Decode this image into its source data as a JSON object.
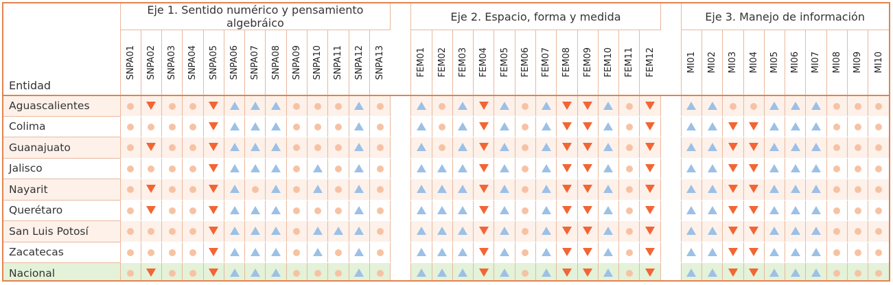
{
  "header": {
    "entity_label": "Entidad",
    "axes": [
      {
        "title": "Eje 1. Sentido numérico y pensamiento algebráico",
        "codes": [
          "SNPA01",
          "SNPA02",
          "SNPA03",
          "SNPA04",
          "SNPA05",
          "SNPA06",
          "SNPA07",
          "SNPA08",
          "SNPA09",
          "SNPA10",
          "SNPA11",
          "SNPA12",
          "SNPA13"
        ]
      },
      {
        "title": "Eje 2. Espacio, forma y medida",
        "codes": [
          "FEM01",
          "FEM02",
          "FEM03",
          "FEM04",
          "FEM05",
          "FEM06",
          "FEM07",
          "FEM08",
          "FEM09",
          "FEM10",
          "FEM11",
          "FEM12"
        ]
      },
      {
        "title": "Eje 3. Manejo de información",
        "codes": [
          "MI01",
          "MI02",
          "MI03",
          "MI04",
          "MI05",
          "MI06",
          "MI07",
          "MI08",
          "MI09",
          "MI10"
        ]
      }
    ]
  },
  "legend_symbols": {
    "o": "dot",
    "u": "triangle-up",
    "d": "triangle-down"
  },
  "colors": {
    "dot": "#f7c2a3",
    "up": "#9cc0e6",
    "down": "#f26534",
    "border": "#e1834e",
    "row_alt": "#fdf1ea",
    "national": "#e3f2d8"
  },
  "rows": [
    {
      "entity": "Aguascalientes",
      "values": [
        "o",
        "d",
        "o",
        "o",
        "d",
        "u",
        "u",
        "u",
        "o",
        "o",
        "o",
        "u",
        "o",
        "u",
        "o",
        "u",
        "d",
        "u",
        "o",
        "u",
        "d",
        "d",
        "u",
        "o",
        "d",
        "u",
        "u",
        "o",
        "o",
        "u",
        "u",
        "u",
        "o",
        "o",
        "o"
      ]
    },
    {
      "entity": "Colima",
      "values": [
        "o",
        "o",
        "o",
        "o",
        "d",
        "u",
        "u",
        "u",
        "o",
        "o",
        "o",
        "u",
        "o",
        "u",
        "o",
        "u",
        "d",
        "u",
        "o",
        "u",
        "d",
        "d",
        "u",
        "o",
        "d",
        "u",
        "u",
        "d",
        "d",
        "u",
        "u",
        "u",
        "o",
        "o",
        "o"
      ]
    },
    {
      "entity": "Guanajuato",
      "values": [
        "o",
        "d",
        "o",
        "o",
        "d",
        "u",
        "u",
        "u",
        "o",
        "o",
        "o",
        "u",
        "o",
        "u",
        "o",
        "u",
        "d",
        "u",
        "o",
        "u",
        "d",
        "d",
        "u",
        "o",
        "d",
        "u",
        "u",
        "d",
        "d",
        "u",
        "u",
        "u",
        "o",
        "o",
        "o"
      ]
    },
    {
      "entity": "Jalisco",
      "values": [
        "o",
        "o",
        "o",
        "o",
        "d",
        "u",
        "u",
        "u",
        "o",
        "u",
        "o",
        "u",
        "o",
        "u",
        "u",
        "u",
        "d",
        "u",
        "o",
        "u",
        "d",
        "d",
        "u",
        "o",
        "d",
        "u",
        "u",
        "d",
        "d",
        "u",
        "u",
        "u",
        "o",
        "o",
        "o"
      ]
    },
    {
      "entity": "Nayarit",
      "values": [
        "o",
        "d",
        "o",
        "o",
        "d",
        "u",
        "o",
        "u",
        "o",
        "u",
        "o",
        "u",
        "o",
        "u",
        "u",
        "u",
        "d",
        "u",
        "o",
        "u",
        "d",
        "d",
        "u",
        "o",
        "d",
        "u",
        "u",
        "d",
        "d",
        "u",
        "u",
        "u",
        "o",
        "o",
        "o"
      ]
    },
    {
      "entity": "Querétaro",
      "values": [
        "o",
        "d",
        "o",
        "o",
        "d",
        "u",
        "u",
        "u",
        "o",
        "o",
        "o",
        "u",
        "o",
        "u",
        "u",
        "u",
        "d",
        "u",
        "o",
        "u",
        "d",
        "d",
        "u",
        "o",
        "d",
        "u",
        "u",
        "d",
        "d",
        "u",
        "u",
        "u",
        "o",
        "o",
        "o"
      ]
    },
    {
      "entity": "San Luis Potosí",
      "values": [
        "o",
        "o",
        "o",
        "o",
        "d",
        "u",
        "u",
        "u",
        "o",
        "u",
        "u",
        "u",
        "o",
        "u",
        "u",
        "u",
        "d",
        "u",
        "o",
        "u",
        "d",
        "d",
        "u",
        "o",
        "d",
        "u",
        "u",
        "d",
        "d",
        "u",
        "u",
        "u",
        "o",
        "o",
        "o"
      ]
    },
    {
      "entity": "Zacatecas",
      "values": [
        "o",
        "o",
        "o",
        "o",
        "d",
        "u",
        "u",
        "u",
        "o",
        "u",
        "o",
        "u",
        "o",
        "u",
        "u",
        "u",
        "d",
        "u",
        "o",
        "u",
        "d",
        "d",
        "u",
        "o",
        "d",
        "u",
        "u",
        "d",
        "d",
        "u",
        "u",
        "u",
        "o",
        "o",
        "o"
      ]
    },
    {
      "entity": "Nacional",
      "national": true,
      "values": [
        "o",
        "d",
        "o",
        "o",
        "d",
        "u",
        "u",
        "u",
        "o",
        "o",
        "o",
        "u",
        "o",
        "u",
        "u",
        "u",
        "d",
        "u",
        "o",
        "u",
        "d",
        "d",
        "u",
        "o",
        "d",
        "u",
        "u",
        "d",
        "d",
        "u",
        "u",
        "u",
        "o",
        "o",
        "o"
      ]
    }
  ]
}
